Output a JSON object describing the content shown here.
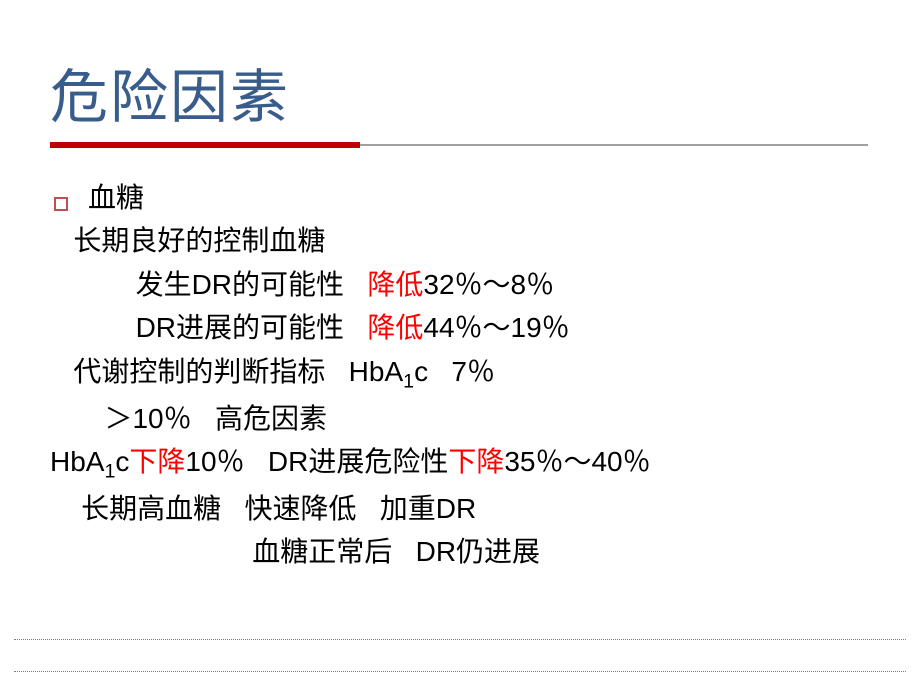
{
  "title": "危险因素",
  "title_color": "#385d8a",
  "title_fontsize": 58,
  "underline": {
    "red_width": 310,
    "total_width": 818,
    "red_color": "#c00000",
    "gray_color": "#a0a0a0"
  },
  "body_fontsize": 28,
  "body_color": "#000000",
  "highlight_color": "#ff0000",
  "bullet_border_color": "#c05050",
  "lines": {
    "l1": "血糖",
    "l2": "   长期良好的控制血糖",
    "l3a": "           发生DR的可能性   ",
    "l3b": "降低",
    "l3c": "32％～8％",
    "l4a": "           DR进展的可能性   ",
    "l4b": "降低",
    "l4c": "44％～19％",
    "l5a": "   代谢控制的判断指标   HbA",
    "l5sub": "1",
    "l5b": "c   7％",
    "l6": "       ＞10％   高危因素",
    "l7a": "HbA",
    "l7sub": "1",
    "l7b": "c",
    "l7c": "下降",
    "l7d": "10％   DR进展危险性",
    "l7e": "下降",
    "l7f": "35％～40％",
    "l8": "    长期高血糖   快速降低   加重DR",
    "l9": "                          血糖正常后   DR仍进展"
  }
}
